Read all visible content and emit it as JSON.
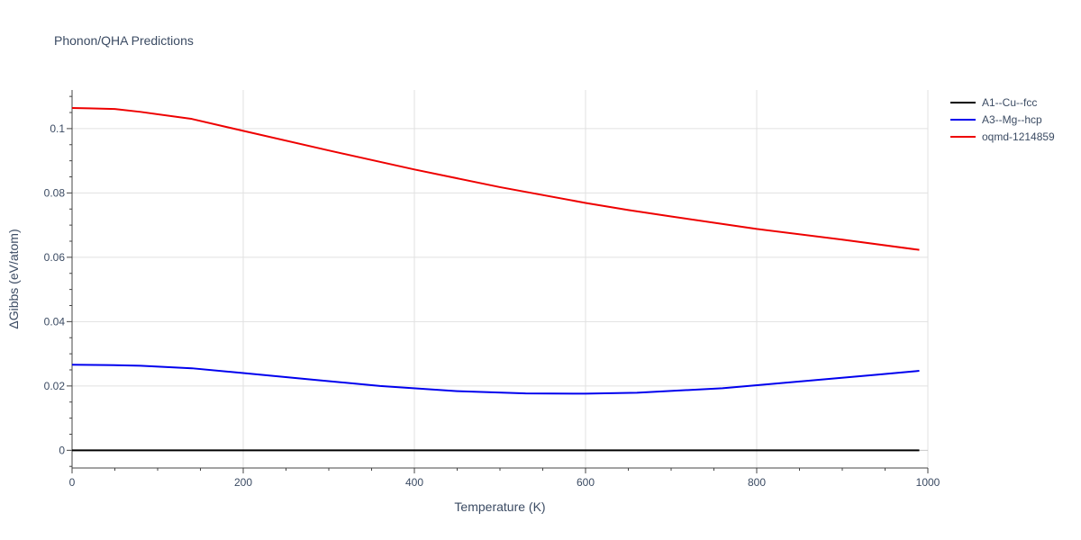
{
  "chart_data": {
    "type": "line",
    "title": "Phonon/QHA Predictions",
    "xlabel": "Temperature (K)",
    "ylabel": "ΔGibbs (eV/atom)",
    "xlim": [
      0,
      1000
    ],
    "ylim": [
      -0.0055,
      0.112
    ],
    "x_ticks": [
      0,
      200,
      400,
      600,
      800,
      1000
    ],
    "x_tick_labels": [
      "0",
      "200",
      "400",
      "600",
      "800",
      "1000"
    ],
    "y_ticks": [
      0,
      0.02,
      0.04,
      0.06,
      0.08,
      0.1
    ],
    "y_tick_labels": [
      "0",
      "0.02",
      "0.04",
      "0.06",
      "0.08",
      "0.1"
    ],
    "grid": true,
    "legend_position": "right",
    "series": [
      {
        "name": "A1--Cu--fcc",
        "color": "#000000",
        "x": [
          0,
          100,
          200,
          300,
          400,
          500,
          600,
          700,
          800,
          900,
          990
        ],
        "y": [
          0,
          0,
          0,
          0,
          0,
          0,
          0,
          0,
          0,
          0,
          0
        ]
      },
      {
        "name": "A3--Mg--hcp",
        "color": "#0000ee",
        "x": [
          0,
          40,
          80,
          140,
          200,
          280,
          360,
          450,
          530,
          600,
          660,
          760,
          850,
          940,
          990
        ],
        "y": [
          0.0266,
          0.0265,
          0.0263,
          0.0255,
          0.024,
          0.022,
          0.02,
          0.0184,
          0.0177,
          0.0176,
          0.0179,
          0.0193,
          0.0214,
          0.0235,
          0.0247
        ]
      },
      {
        "name": "oqmd-1214859",
        "color": "#ee0000",
        "x": [
          0,
          20,
          50,
          80,
          140,
          200,
          300,
          400,
          500,
          600,
          650,
          700,
          800,
          900,
          990
        ],
        "y": [
          0.1064,
          0.1063,
          0.1061,
          0.1052,
          0.103,
          0.0993,
          0.0932,
          0.0873,
          0.0818,
          0.0769,
          0.0747,
          0.0727,
          0.0688,
          0.0655,
          0.0623
        ]
      }
    ]
  }
}
